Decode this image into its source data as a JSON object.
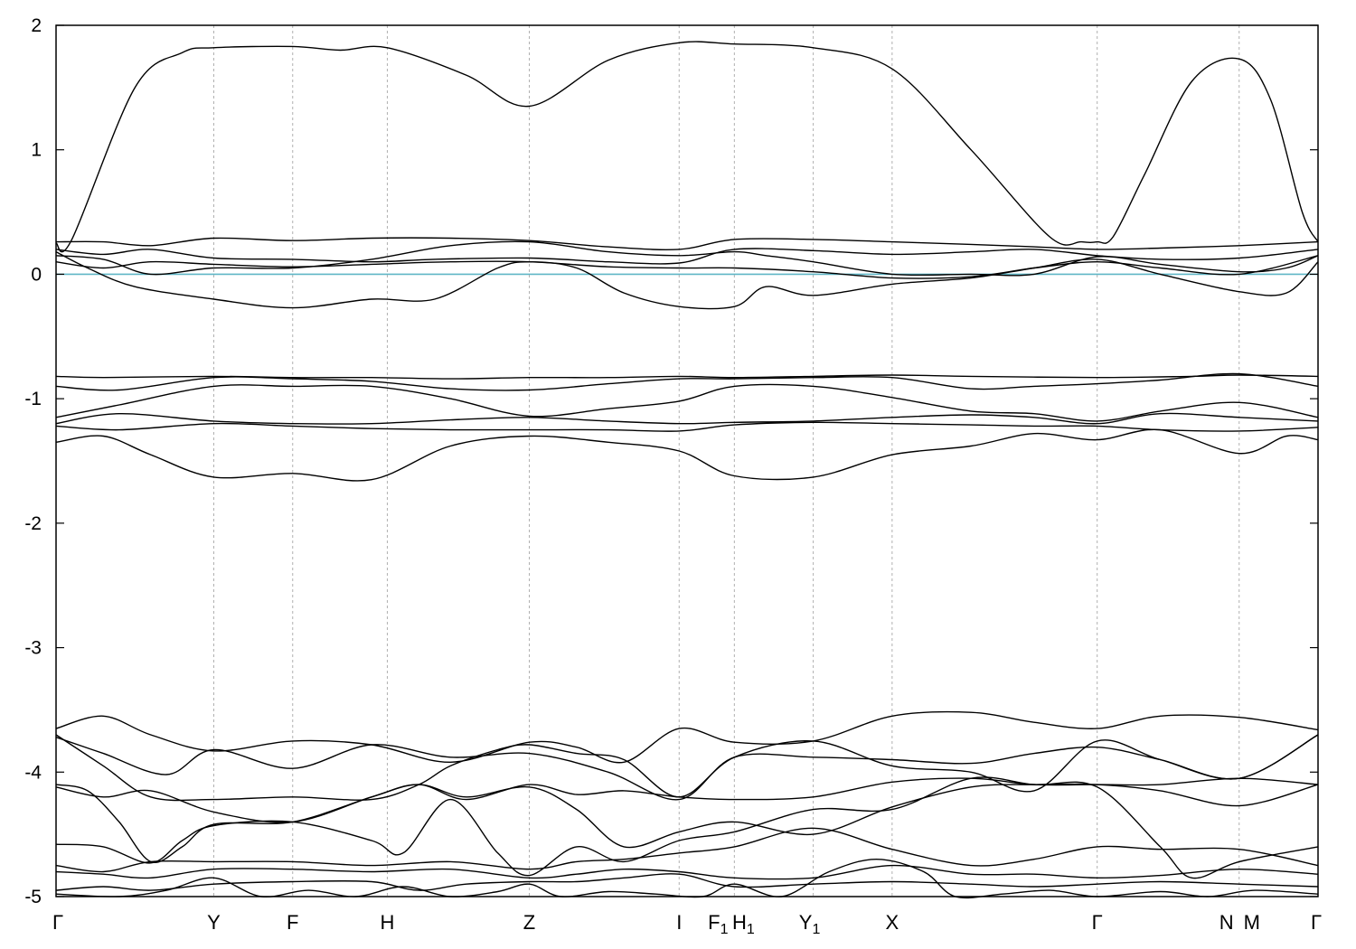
{
  "chart_data": {
    "type": "line",
    "title": "",
    "xlabel": "",
    "ylabel": "",
    "ylim": [
      -5,
      2
    ],
    "yticks": [
      2,
      1,
      0,
      -1,
      -2,
      -3,
      -4,
      -5
    ],
    "fermi_level": {
      "value": 0,
      "color": "#5fb6c6"
    },
    "line_color": "#000000",
    "grid": "vertical dashed lines at high-symmetry points",
    "kpoints": [
      {
        "label": "Γ",
        "sub": "",
        "x": 0.0
      },
      {
        "label": "Y",
        "sub": "",
        "x": 1.0
      },
      {
        "label": "F",
        "sub": "",
        "x": 1.5
      },
      {
        "label": "H",
        "sub": "",
        "x": 2.1
      },
      {
        "label": "Z",
        "sub": "",
        "x": 3.0
      },
      {
        "label": "I",
        "sub": "",
        "x": 3.95
      },
      {
        "label": "F",
        "sub": "1",
        "x": 4.3
      },
      {
        "label": "H",
        "sub": "1",
        "x": 4.3
      },
      {
        "label": "Y",
        "sub": "1",
        "x": 4.8
      },
      {
        "label": "X",
        "sub": "",
        "x": 5.3
      },
      {
        "label": "Γ",
        "sub": "",
        "x": 6.6
      },
      {
        "label": "N",
        "sub": "",
        "x": 7.5
      },
      {
        "label": "M",
        "sub": "",
        "x": 7.5
      },
      {
        "label": "Γ",
        "sub": "",
        "x": 8.0
      }
    ],
    "series": [
      {
        "x": [
          0,
          0.1,
          0.5,
          0.8,
          1,
          1.5,
          1.8,
          2.1,
          2.6,
          3,
          3.5,
          3.95,
          4.3,
          4.8,
          5.3,
          5.8,
          6.3,
          6.5,
          6.6,
          6.7,
          6.9,
          7.2,
          7.5,
          7.7,
          7.9,
          8
        ],
        "y": [
          0.25,
          0.28,
          1.5,
          1.78,
          1.82,
          1.83,
          1.8,
          1.82,
          1.6,
          1.35,
          1.72,
          1.86,
          1.85,
          1.82,
          1.65,
          1.0,
          0.3,
          0.26,
          0.26,
          0.3,
          0.8,
          1.55,
          1.73,
          1.4,
          0.5,
          0.26
        ]
      },
      {
        "x": [
          0,
          0.3,
          0.6,
          1,
          1.5,
          2,
          2.5,
          3,
          3.5,
          3.95,
          4.3,
          4.8,
          5.3,
          5.8,
          6.2,
          6.6,
          7.0,
          7.5,
          8
        ],
        "y": [
          0.26,
          0.26,
          0.23,
          0.29,
          0.27,
          0.29,
          0.29,
          0.27,
          0.22,
          0.2,
          0.28,
          0.28,
          0.26,
          0.24,
          0.22,
          0.2,
          0.21,
          0.23,
          0.26
        ]
      },
      {
        "x": [
          0,
          0.3,
          0.6,
          1,
          1.5,
          2,
          2.4,
          3,
          3.5,
          3.95,
          4.3,
          4.8,
          5.3,
          5.8,
          6.2,
          6.6,
          7.0,
          7.5,
          8
        ],
        "y": [
          0.2,
          0.16,
          0.2,
          0.13,
          0.12,
          0.1,
          0.12,
          0.13,
          0.1,
          0.09,
          0.2,
          0.19,
          0.16,
          0.18,
          0.2,
          0.15,
          0.12,
          0.13,
          0.2
        ]
      },
      {
        "x": [
          0,
          0.3,
          0.6,
          1,
          1.5,
          2,
          2.5,
          3,
          3.5,
          3.95,
          4.3,
          4.5,
          4.8,
          5.3,
          5.8,
          6.2,
          6.6,
          7.0,
          7.5,
          7.8,
          8
        ],
        "y": [
          0.15,
          0.12,
          0.0,
          0.05,
          0.05,
          0.12,
          0.23,
          0.26,
          0.18,
          0.15,
          0.18,
          0.15,
          0.1,
          0.0,
          0.0,
          0.0,
          0.14,
          0.08,
          0.02,
          0.05,
          0.15
        ]
      },
      {
        "x": [
          0,
          0.3,
          0.6,
          1,
          1.5,
          2,
          2.5,
          3,
          3.5,
          3.95,
          4.3,
          4.8,
          5.3,
          5.8,
          6.2,
          6.6,
          7.0,
          7.5,
          8
        ],
        "y": [
          0.1,
          0.05,
          0.1,
          0.08,
          0.06,
          0.08,
          0.1,
          0.1,
          0.06,
          0.05,
          0.05,
          0.02,
          -0.03,
          -0.02,
          0.05,
          0.1,
          0.05,
          0.0,
          0.15
        ]
      },
      {
        "x": [
          0,
          0.2,
          0.5,
          1,
          1.5,
          2,
          2.4,
          2.8,
          3,
          3.3,
          3.6,
          3.95,
          4.3,
          4.5,
          4.8,
          5.3,
          5.8,
          6.2,
          6.6,
          7.0,
          7.5,
          7.8,
          8
        ],
        "y": [
          0.18,
          0.05,
          -0.1,
          -0.2,
          -0.27,
          -0.2,
          -0.2,
          0.05,
          0.1,
          0.05,
          -0.15,
          -0.26,
          -0.26,
          -0.1,
          -0.17,
          -0.08,
          -0.03,
          0.05,
          0.12,
          0.0,
          -0.14,
          -0.15,
          0.1
        ]
      },
      {
        "x": [
          0,
          0.3,
          1,
          1.5,
          2,
          2.5,
          3,
          3.5,
          3.95,
          4.3,
          4.8,
          5.3,
          5.8,
          6.6,
          7.2,
          7.5,
          8
        ],
        "y": [
          -0.82,
          -0.83,
          -0.82,
          -0.83,
          -0.83,
          -0.84,
          -0.83,
          -0.83,
          -0.82,
          -0.83,
          -0.82,
          -0.81,
          -0.82,
          -0.83,
          -0.82,
          -0.81,
          -0.82
        ]
      },
      {
        "x": [
          0,
          0.4,
          1,
          1.5,
          2,
          2.5,
          3,
          3.5,
          3.95,
          4.3,
          4.8,
          5.3,
          5.8,
          6.2,
          6.6,
          7.0,
          7.5,
          8
        ],
        "y": [
          -0.9,
          -0.93,
          -0.83,
          -0.84,
          -0.86,
          -0.92,
          -0.93,
          -0.88,
          -0.84,
          -0.84,
          -0.83,
          -0.83,
          -0.92,
          -0.9,
          -0.88,
          -0.85,
          -0.8,
          -0.9
        ]
      },
      {
        "x": [
          0,
          0.4,
          1,
          1.5,
          2,
          2.5,
          3,
          3.5,
          3.95,
          4.3,
          4.8,
          5.3,
          5.8,
          6.2,
          6.6,
          7.0,
          7.5,
          8
        ],
        "y": [
          -1.15,
          -1.05,
          -0.9,
          -0.9,
          -0.9,
          -1.0,
          -1.14,
          -1.08,
          -1.02,
          -0.9,
          -0.9,
          -0.99,
          -1.1,
          -1.12,
          -1.18,
          -1.1,
          -1.03,
          -1.15
        ]
      },
      {
        "x": [
          0,
          0.4,
          1,
          1.5,
          2,
          2.5,
          3,
          3.5,
          3.95,
          4.3,
          4.8,
          5.3,
          5.8,
          6.2,
          6.6,
          7.0,
          7.5,
          8
        ],
        "y": [
          -1.2,
          -1.12,
          -1.18,
          -1.2,
          -1.2,
          -1.17,
          -1.15,
          -1.18,
          -1.2,
          -1.19,
          -1.18,
          -1.15,
          -1.13,
          -1.15,
          -1.2,
          -1.12,
          -1.15,
          -1.18
        ]
      },
      {
        "x": [
          0,
          0.4,
          1,
          1.5,
          2,
          2.5,
          3,
          3.5,
          3.95,
          4.3,
          4.8,
          5.3,
          5.8,
          6.2,
          6.6,
          7.0,
          7.5,
          8
        ],
        "y": [
          -1.22,
          -1.25,
          -1.2,
          -1.22,
          -1.24,
          -1.25,
          -1.25,
          -1.25,
          -1.26,
          -1.21,
          -1.19,
          -1.2,
          -1.21,
          -1.22,
          -1.22,
          -1.25,
          -1.26,
          -1.23
        ]
      },
      {
        "x": [
          0,
          0.3,
          0.6,
          1,
          1.5,
          2,
          2.5,
          3,
          3.5,
          3.95,
          4.3,
          4.8,
          5.3,
          5.8,
          6.2,
          6.6,
          7.0,
          7.5,
          7.8,
          8
        ],
        "y": [
          -1.35,
          -1.3,
          -1.45,
          -1.63,
          -1.6,
          -1.65,
          -1.38,
          -1.3,
          -1.35,
          -1.42,
          -1.62,
          -1.63,
          -1.45,
          -1.38,
          -1.28,
          -1.33,
          -1.25,
          -1.44,
          -1.3,
          -1.33
        ]
      },
      {
        "x": [
          0,
          0.3,
          0.6,
          1,
          1.5,
          2,
          2.5,
          3,
          3.3,
          3.6,
          3.95,
          4.3,
          4.8,
          5.3,
          5.8,
          6.2,
          6.6,
          7.0,
          7.5,
          8
        ],
        "y": [
          -3.65,
          -3.55,
          -3.7,
          -3.83,
          -3.75,
          -3.78,
          -3.92,
          -3.76,
          -3.8,
          -3.92,
          -3.65,
          -3.76,
          -3.75,
          -3.55,
          -3.52,
          -3.6,
          -3.65,
          -3.55,
          -3.56,
          -3.66
        ]
      },
      {
        "x": [
          0,
          0.3,
          0.7,
          1,
          1.5,
          2,
          2.5,
          3,
          3.5,
          3.95,
          4.3,
          4.8,
          5.3,
          5.8,
          6.2,
          6.6,
          7.0,
          7.5,
          8
        ],
        "y": [
          -3.72,
          -3.85,
          -4.02,
          -3.82,
          -3.97,
          -3.78,
          -3.88,
          -3.85,
          -4.0,
          -4.22,
          -3.88,
          -3.88,
          -3.9,
          -3.93,
          -3.85,
          -3.8,
          -3.9,
          -4.05,
          -3.7
        ]
      },
      {
        "x": [
          0,
          0.3,
          0.6,
          1,
          1.5,
          2,
          2.3,
          2.5,
          2.8,
          3,
          3.3,
          3.6,
          3.95,
          4.3,
          4.8,
          5.3,
          5.8,
          6.2,
          6.6,
          7.0,
          7.5,
          8
        ],
        "y": [
          -3.7,
          -3.95,
          -4.2,
          -4.22,
          -4.2,
          -4.22,
          -4.1,
          -3.95,
          -3.82,
          -3.78,
          -3.85,
          -3.9,
          -4.2,
          -3.88,
          -3.75,
          -3.95,
          -4.0,
          -4.15,
          -3.75,
          -3.9,
          -4.05,
          -3.7
        ]
      },
      {
        "x": [
          0,
          0.2,
          0.4,
          0.6,
          0.8,
          1,
          1.5,
          2,
          2.3,
          2.6,
          3,
          3.3,
          3.6,
          3.95,
          4.3,
          4.8,
          5.3,
          5.8,
          6.2,
          6.6,
          7.0,
          7.5,
          8
        ],
        "y": [
          -4.1,
          -4.15,
          -4.4,
          -4.72,
          -4.6,
          -4.42,
          -4.4,
          -4.2,
          -4.1,
          -4.22,
          -4.1,
          -4.18,
          -4.15,
          -4.2,
          -4.22,
          -4.2,
          -4.08,
          -4.05,
          -4.1,
          -4.1,
          -4.1,
          -4.05,
          -4.1
        ]
      },
      {
        "x": [
          0,
          0.3,
          0.6,
          1,
          1.5,
          2,
          2.3,
          2.6,
          3,
          3.3,
          3.6,
          3.95,
          4.3,
          4.8,
          5.3,
          5.8,
          6.2,
          6.6,
          7.0,
          7.5,
          8
        ],
        "y": [
          -4.12,
          -4.2,
          -4.15,
          -4.32,
          -4.4,
          -4.2,
          -4.1,
          -4.2,
          -4.12,
          -4.3,
          -4.6,
          -4.48,
          -4.4,
          -4.5,
          -4.28,
          -4.12,
          -4.1,
          -4.1,
          -4.15,
          -4.27,
          -4.1
        ]
      },
      {
        "x": [
          0,
          0.3,
          0.6,
          0.8,
          1,
          1.5,
          2,
          2.2,
          2.5,
          2.8,
          3,
          3.3,
          3.6,
          3.95,
          4.3,
          4.8,
          5.3,
          5.8,
          6.2,
          6.6,
          7.0,
          7.2,
          7.5,
          8
        ],
        "y": [
          -4.58,
          -4.6,
          -4.73,
          -4.55,
          -4.43,
          -4.4,
          -4.55,
          -4.65,
          -4.22,
          -4.65,
          -4.83,
          -4.6,
          -4.72,
          -4.55,
          -4.48,
          -4.3,
          -4.3,
          -4.05,
          -4.1,
          -4.12,
          -4.6,
          -4.85,
          -4.72,
          -4.6
        ]
      },
      {
        "x": [
          0,
          0.3,
          0.6,
          1,
          1.5,
          2,
          2.5,
          3,
          3.3,
          3.6,
          3.95,
          4.3,
          4.8,
          5.3,
          5.8,
          6.2,
          6.6,
          7.0,
          7.5,
          8
        ],
        "y": [
          -4.75,
          -4.8,
          -4.72,
          -4.72,
          -4.72,
          -4.75,
          -4.72,
          -4.78,
          -4.72,
          -4.7,
          -4.65,
          -4.6,
          -4.45,
          -4.62,
          -4.75,
          -4.7,
          -4.6,
          -4.62,
          -4.62,
          -4.75
        ]
      },
      {
        "x": [
          0,
          0.3,
          0.6,
          1,
          1.5,
          2,
          2.5,
          3,
          3.3,
          3.6,
          3.95,
          4.3,
          4.8,
          5.3,
          5.8,
          6.2,
          6.6,
          7.0,
          7.5,
          8
        ],
        "y": [
          -4.8,
          -4.82,
          -4.85,
          -4.78,
          -4.78,
          -4.8,
          -4.78,
          -4.85,
          -4.82,
          -4.78,
          -4.8,
          -4.85,
          -4.85,
          -4.75,
          -4.82,
          -4.82,
          -4.85,
          -4.83,
          -4.78,
          -4.82
        ]
      },
      {
        "x": [
          0,
          0.3,
          0.6,
          1,
          1.5,
          2,
          2.3,
          2.6,
          3,
          3.3,
          3.6,
          3.95,
          4.3,
          4.8,
          5.3,
          5.8,
          6.2,
          6.6,
          7.0,
          7.5,
          8
        ],
        "y": [
          -4.95,
          -4.92,
          -4.95,
          -4.9,
          -4.88,
          -4.88,
          -4.95,
          -4.9,
          -4.88,
          -4.88,
          -4.85,
          -4.82,
          -4.92,
          -4.9,
          -4.88,
          -4.9,
          -4.92,
          -4.9,
          -4.88,
          -4.9,
          -4.92
        ]
      },
      {
        "x": [
          0,
          0.4,
          0.7,
          1,
          1.3,
          1.6,
          1.9,
          2.2,
          2.5,
          2.8,
          3,
          3.2,
          3.5,
          3.8,
          4.1,
          4.3,
          4.6,
          4.9,
          5.2,
          5.5,
          5.7,
          6.0,
          6.3,
          6.6,
          7.0,
          7.3,
          7.6,
          8
        ],
        "y": [
          -4.98,
          -5.0,
          -4.95,
          -4.85,
          -5.0,
          -4.95,
          -5.0,
          -4.92,
          -5.0,
          -4.96,
          -4.9,
          -5.0,
          -4.96,
          -4.98,
          -5.0,
          -4.9,
          -5.0,
          -4.8,
          -4.7,
          -4.8,
          -5.0,
          -4.98,
          -4.95,
          -5.0,
          -4.96,
          -5.0,
          -4.95,
          -4.98
        ]
      }
    ]
  }
}
